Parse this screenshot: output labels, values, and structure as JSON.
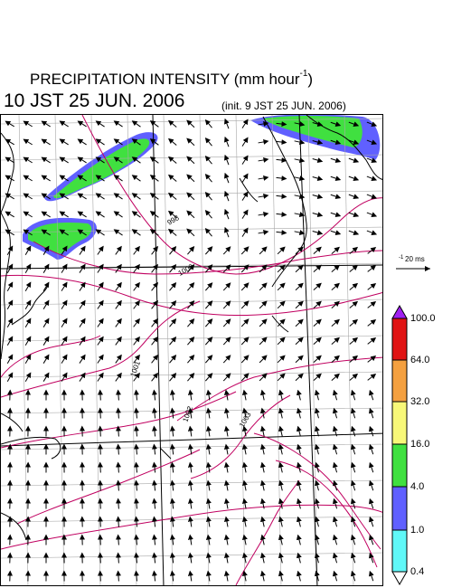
{
  "header": {
    "title_prefix": "PRECIPITATION INTENSITY (mm hour",
    "title_exp": "-1",
    "title_suffix": ")",
    "valid_time": "10 JST 25 JUN. 2006",
    "init_time": "(init. 9 JST 25 JUN. 2006)"
  },
  "reference_vector": {
    "value": "20 ms",
    "exp": "-1"
  },
  "contour_labels": [
    "998",
    "1000",
    "1001",
    "1002",
    "1003"
  ],
  "colorbar": {
    "levels": [
      {
        "label": "100.0",
        "color": "#a020f0"
      },
      {
        "label": "64.0",
        "color": "#e01414"
      },
      {
        "label": "32.0",
        "color": "#f4a040"
      },
      {
        "label": "16.0",
        "color": "#f8f878"
      },
      {
        "label": "4.0",
        "color": "#40e040"
      },
      {
        "label": "1.0",
        "color": "#6060ff"
      },
      {
        "label": "0.4",
        "color": "#60f8f8"
      }
    ]
  },
  "colors": {
    "isobar": "#c00060",
    "grid": "#a8a8a8",
    "coast": "#000000"
  }
}
